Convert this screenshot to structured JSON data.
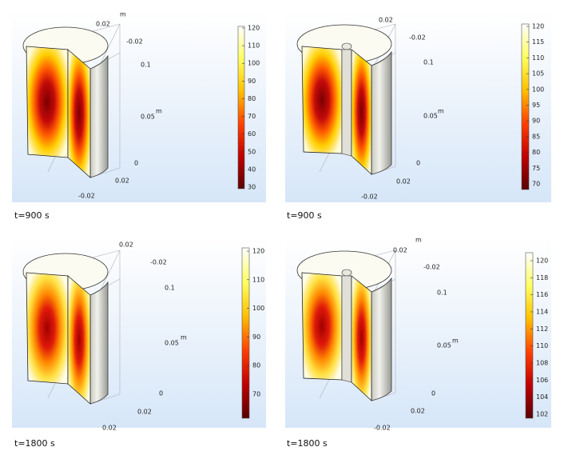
{
  "panels": [
    {
      "caption": "t=900 s",
      "colorbar_ticks": [
        "120",
        "110",
        "100",
        "90",
        "80",
        "70",
        "60",
        "50",
        "40",
        "30"
      ],
      "axis_labels": [
        "0.02",
        "m",
        "-0.02",
        "0.1",
        "0.05",
        "m",
        "0",
        "0.02",
        "-0.02"
      ]
    },
    {
      "caption": "t=900 s",
      "colorbar_ticks": [
        "120",
        "115",
        "110",
        "105",
        "100",
        "95",
        "90",
        "85",
        "80",
        "75",
        "70"
      ],
      "axis_labels": [
        "0.02",
        "-0.02",
        "0.1",
        "0.05",
        "m",
        "0",
        "0.02",
        "-0.02"
      ]
    },
    {
      "caption": "t=1800 s",
      "colorbar_ticks": [
        "120",
        "110",
        "100",
        "90",
        "80",
        "70"
      ],
      "axis_labels": [
        "0.02",
        "-0.02",
        "0.1",
        "0.05",
        "m",
        "0",
        "0.02",
        "0.02"
      ]
    },
    {
      "caption": "t=1800 s",
      "colorbar_ticks": [
        "120",
        "118",
        "116",
        "114",
        "112",
        "110",
        "108",
        "106",
        "104",
        "102"
      ],
      "axis_labels": [
        "m",
        "0.02",
        "-0.02",
        "0.1",
        "0.05",
        "m",
        "0",
        "0.02",
        "-0.02"
      ]
    }
  ]
}
